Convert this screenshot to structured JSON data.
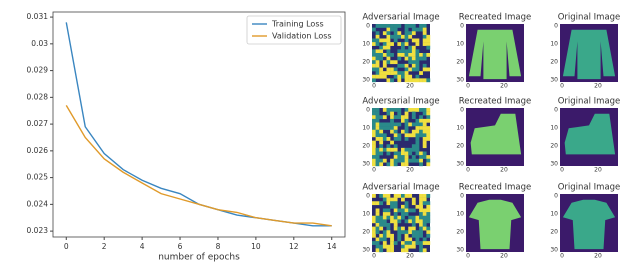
{
  "chart_data": {
    "type": "line",
    "x": [
      0,
      1,
      2,
      3,
      4,
      5,
      6,
      7,
      8,
      9,
      10,
      11,
      12,
      13,
      14
    ],
    "series": [
      {
        "name": "Training Loss",
        "color": "#3a86c0",
        "values": [
          0.0308,
          0.0269,
          0.0259,
          0.0253,
          0.0249,
          0.0246,
          0.0244,
          0.024,
          0.0238,
          0.0236,
          0.0235,
          0.0234,
          0.0233,
          0.0232,
          0.0232
        ]
      },
      {
        "name": "Validation Loss",
        "color": "#e09a2a",
        "values": [
          0.0277,
          0.0265,
          0.0257,
          0.0252,
          0.0248,
          0.0244,
          0.0242,
          0.024,
          0.0238,
          0.0237,
          0.0235,
          0.0234,
          0.0233,
          0.0233,
          0.0232
        ]
      }
    ],
    "x_label": "number of epochs",
    "xlim": [
      -0.7,
      14.7
    ],
    "xticks": [
      0,
      2,
      4,
      6,
      8,
      10,
      12,
      14
    ],
    "ylim": [
      0.02278,
      0.03119
    ],
    "yticks": [
      0.023,
      0.024,
      0.025,
      0.026,
      0.027,
      0.028,
      0.029,
      0.03,
      0.031
    ],
    "legend": "upper right",
    "grid": false
  },
  "image_grid": {
    "rows": [
      [
        "Adversarial Image",
        "Recreated Image",
        "Original Image"
      ],
      [
        "Adversarial Image",
        "Recreated Image",
        "Original Image"
      ],
      [
        "Adversarial Image",
        "Recreated Image",
        "Original Image"
      ]
    ],
    "y_ticks": [
      "0",
      "10",
      "20",
      "30"
    ],
    "x_ticks": [
      "0",
      "20"
    ]
  }
}
